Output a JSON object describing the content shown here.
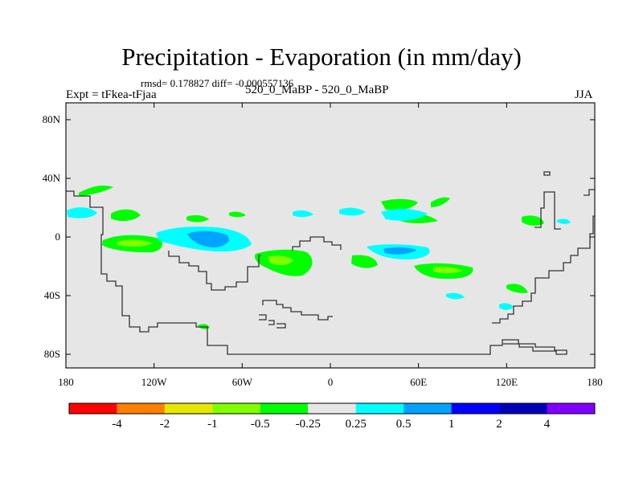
{
  "header": {
    "title": "Precipitation - Evaporation (in mm/day)",
    "stats": "rmsd= 0.178827 diff= -0.000557136",
    "left_label": "Expt = tFkea-tFjaa",
    "center_label": "520_0_MaBP - 520_0_MaBP",
    "right_label": "JJA"
  },
  "map": {
    "background": "#e6e6e6",
    "border": "#000000",
    "coastline_color": "#333333",
    "x_ticks": [
      "180",
      "120W",
      "60W",
      "0",
      "60E",
      "120E",
      "180"
    ],
    "y_ticks": [
      "80N",
      "40N",
      "0",
      "40S",
      "80S"
    ]
  },
  "legend": {
    "labels": [
      "-4",
      "-2",
      "-1",
      "-0.5",
      "-0.25",
      "0.25",
      "0.5",
      "1",
      "2",
      "4"
    ],
    "colors": [
      "#ff0000",
      "#ff7f00",
      "#e6e600",
      "#7fff00",
      "#00ff00",
      "#e6e6e6",
      "#00ffff",
      "#00a3ff",
      "#0000ff",
      "#0000b8",
      "#8000ff"
    ]
  }
}
